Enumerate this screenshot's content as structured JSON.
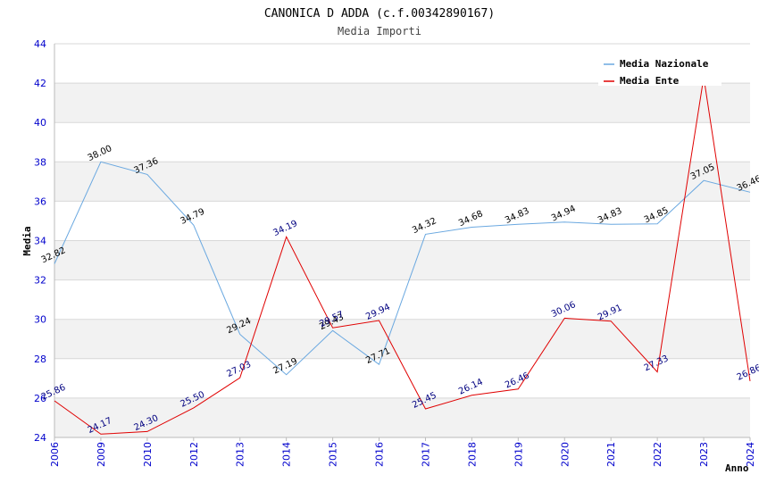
{
  "chart_data": {
    "type": "line",
    "title": "CANONICA D ADDA (c.f.00342890167)",
    "subtitle": "Media Importi",
    "ylabel": "Media",
    "xlabel": "Anno",
    "ylim": [
      24,
      44
    ],
    "yticks": [
      24,
      26,
      28,
      30,
      32,
      34,
      36,
      38,
      40,
      42,
      44
    ],
    "categories": [
      "2006",
      "2009",
      "2010",
      "2012",
      "2013",
      "2014",
      "2015",
      "2016",
      "2017",
      "2018",
      "2019",
      "2020",
      "2021",
      "2022",
      "2023",
      "2024"
    ],
    "grid": true,
    "legend_position": "top-right",
    "series": [
      {
        "name": "Media Nazionale",
        "color": "#6aa8e0",
        "values": [
          32.82,
          38.0,
          37.36,
          34.79,
          29.24,
          27.19,
          29.43,
          27.71,
          34.32,
          34.68,
          34.83,
          34.94,
          34.83,
          34.85,
          37.05,
          36.46
        ],
        "labels": [
          "32.82",
          "38.00",
          "37.36",
          "34.79",
          "29.24",
          "27.19",
          "29.43",
          "27.71",
          "34.32",
          "34.68",
          "34.83",
          "34.94",
          "34.83",
          "34.85",
          "37.05",
          "36.46"
        ]
      },
      {
        "name": "Media Ente",
        "color": "#e00000",
        "values": [
          25.86,
          24.17,
          24.3,
          25.5,
          27.03,
          34.19,
          29.57,
          29.94,
          25.45,
          26.14,
          26.46,
          30.06,
          29.91,
          27.33,
          42.3,
          26.86
        ],
        "labels": [
          "25.86",
          "24.17",
          "24.30",
          "25.50",
          "27.03",
          "34.19",
          "29.57",
          "29.94",
          "25.45",
          "26.14",
          "26.46",
          "30.06",
          "29.91",
          "27.33",
          "",
          "26.86"
        ]
      }
    ]
  }
}
